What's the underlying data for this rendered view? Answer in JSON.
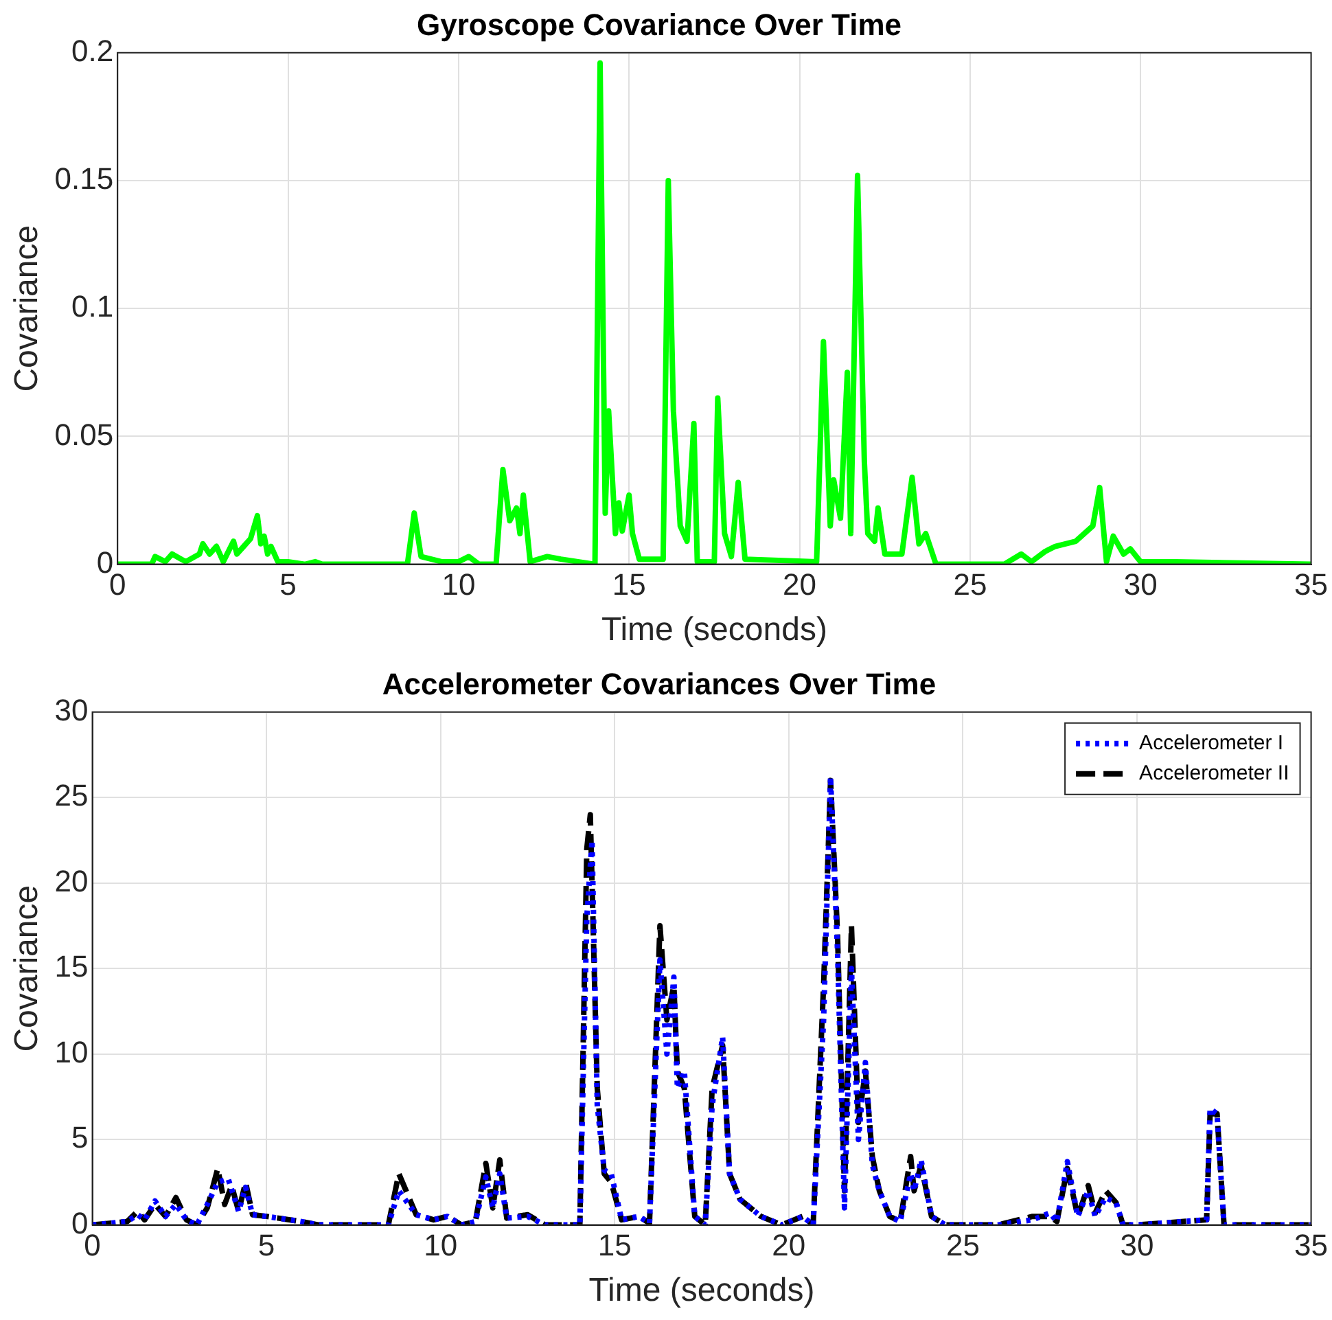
{
  "chart_data": [
    {
      "type": "line",
      "title": "Gyroscope Covariance Over Time",
      "xlabel": "Time (seconds)",
      "ylabel": "Covariance",
      "xlim": [
        0,
        35
      ],
      "xticks": [
        0,
        5,
        10,
        15,
        20,
        25,
        30,
        35
      ],
      "ylim": [
        0,
        0.2
      ],
      "yticks": [
        0,
        0.05,
        0.1,
        0.15,
        0.2
      ],
      "grid": true,
      "legend": false,
      "line_style": "solid",
      "series": [
        {
          "color": "#00ff00",
          "x": [
            0,
            1,
            1.1,
            1.4,
            1.6,
            2,
            2.4,
            2.5,
            2.7,
            2.9,
            3.1,
            3.4,
            3.5,
            3.7,
            3.9,
            4.1,
            4.2,
            4.3,
            4.4,
            4.5,
            4.7,
            5,
            5.5,
            5.8,
            6,
            8.5,
            8.7,
            8.9,
            9.5,
            10,
            10.3,
            10.6,
            11.1,
            11.3,
            11.5,
            11.7,
            11.8,
            11.9,
            12.1,
            12.6,
            13,
            14,
            14.15,
            14.3,
            14.4,
            14.6,
            14.7,
            14.8,
            15,
            15.1,
            15.3,
            16,
            16.15,
            16.3,
            16.5,
            16.7,
            16.9,
            17,
            17.5,
            17.6,
            17.8,
            18,
            18.2,
            18.4,
            20.5,
            20.7,
            20.9,
            21,
            21.2,
            21.4,
            21.5,
            21.7,
            21.9,
            22,
            22.2,
            22.3,
            22.5,
            23,
            23.3,
            23.5,
            23.7,
            24,
            26,
            26.5,
            26.8,
            27.2,
            27.5,
            27.8,
            28.1,
            28.6,
            28.8,
            29,
            29.2,
            29.5,
            29.7,
            30,
            31,
            35
          ],
          "values": [
            0,
            0,
            0.003,
            0.001,
            0.004,
            0.001,
            0.004,
            0.008,
            0.004,
            0.007,
            0.001,
            0.009,
            0.004,
            0.007,
            0.01,
            0.019,
            0.008,
            0.011,
            0.004,
            0.007,
            0.001,
            0.001,
            0,
            0.001,
            0,
            0,
            0.02,
            0.003,
            0.001,
            0.001,
            0.003,
            0,
            0,
            0.037,
            0.017,
            0.022,
            0.012,
            0.027,
            0.001,
            0.003,
            0.002,
            0,
            0.196,
            0.02,
            0.06,
            0.012,
            0.024,
            0.013,
            0.027,
            0.012,
            0.002,
            0.002,
            0.15,
            0.06,
            0.015,
            0.009,
            0.055,
            0.001,
            0.001,
            0.065,
            0.012,
            0.003,
            0.032,
            0.002,
            0.001,
            0.087,
            0.015,
            0.033,
            0.018,
            0.075,
            0.012,
            0.152,
            0.04,
            0.012,
            0.009,
            0.022,
            0.004,
            0.004,
            0.034,
            0.008,
            0.012,
            0,
            0,
            0.004,
            0.001,
            0.005,
            0.007,
            0.008,
            0.009,
            0.015,
            0.03,
            0.001,
            0.011,
            0.004,
            0.006,
            0.001,
            0.001,
            0
          ]
        }
      ]
    },
    {
      "type": "line",
      "title": "Accelerometer Covariances Over Time",
      "xlabel": "Time (seconds)",
      "ylabel": "Covariance",
      "xlim": [
        0,
        35
      ],
      "xticks": [
        0,
        5,
        10,
        15,
        20,
        25,
        30,
        35
      ],
      "ylim": [
        0,
        30
      ],
      "yticks": [
        0,
        5,
        10,
        15,
        20,
        25,
        30
      ],
      "grid": true,
      "legend": "top right",
      "series": [
        {
          "name": "Accelerometer I",
          "color": "#0000ff",
          "line_style": "dotted",
          "x": [
            0,
            1,
            1.3,
            1.5,
            1.8,
            2.1,
            2.4,
            2.7,
            3,
            3.3,
            3.6,
            3.9,
            4.2,
            4.4,
            4.6,
            5,
            6,
            6.5,
            8.5,
            8.8,
            9.3,
            9.8,
            10.2,
            10.6,
            11,
            11.3,
            11.5,
            11.7,
            11.9,
            12.5,
            13,
            14,
            14.2,
            14.35,
            14.5,
            14.7,
            14.9,
            15.2,
            15.7,
            16,
            16.3,
            16.5,
            16.7,
            16.8,
            17,
            17.3,
            17.6,
            17.8,
            18.1,
            18.3,
            18.6,
            19.2,
            19.8,
            20.4,
            20.7,
            21,
            21.2,
            21.4,
            21.6,
            21.8,
            22,
            22.2,
            22.4,
            22.6,
            22.9,
            23.2,
            23.5,
            23.6,
            23.8,
            24.1,
            24.5,
            26,
            27,
            27.5,
            27.7,
            28,
            28.3,
            28.6,
            28.8,
            29.1,
            29.4,
            29.6,
            30,
            32,
            32.1,
            32.3,
            32.5,
            35
          ],
          "values": [
            0,
            0.2,
            0.6,
            0.3,
            1.4,
            0.5,
            1.2,
            0.3,
            0,
            1.2,
            2.5,
            2.7,
            0.8,
            2.2,
            0.6,
            0.5,
            0.2,
            0,
            0,
            2.0,
            0.6,
            0.3,
            0.5,
            0,
            0.2,
            2.8,
            1.0,
            3.0,
            0.4,
            0.5,
            0,
            0,
            18,
            22.5,
            7,
            3.2,
            3,
            0.3,
            0.5,
            0.1,
            15.5,
            10,
            14.5,
            8,
            9,
            0.5,
            0,
            7,
            11,
            3,
            1.5,
            0.5,
            0,
            0.5,
            0,
            12,
            26.2,
            16,
            1,
            15,
            5,
            9.5,
            3.5,
            2,
            0.5,
            0.2,
            3,
            2,
            3.8,
            0.5,
            0,
            0,
            0.3,
            0.7,
            0.2,
            3.7,
            0.5,
            2,
            0.5,
            1.6,
            1.3,
            0,
            0,
            0.3,
            6.8,
            6.5,
            0,
            0
          ]
        },
        {
          "name": "Accelerometer II",
          "color": "#000000",
          "line_style": "dashed",
          "x": [
            0,
            1,
            1.3,
            1.5,
            1.8,
            2.1,
            2.4,
            2.7,
            3,
            3.3,
            3.6,
            3.8,
            4,
            4.2,
            4.4,
            4.6,
            5,
            6,
            6.5,
            8.5,
            8.8,
            9.3,
            9.8,
            10.2,
            10.6,
            11,
            11.3,
            11.5,
            11.7,
            11.9,
            12.5,
            13,
            14,
            14.2,
            14.3,
            14.5,
            14.7,
            14.9,
            15.2,
            15.7,
            16,
            16.3,
            16.5,
            16.7,
            16.8,
            17,
            17.3,
            17.6,
            17.8,
            18.1,
            18.3,
            18.6,
            19.2,
            19.8,
            20.4,
            20.7,
            21,
            21.2,
            21.4,
            21.6,
            21.8,
            22,
            22.2,
            22.4,
            22.6,
            22.9,
            23.2,
            23.5,
            23.6,
            23.8,
            24.1,
            24.5,
            26,
            27,
            27.5,
            27.7,
            28,
            28.3,
            28.6,
            28.8,
            29.1,
            29.4,
            29.6,
            30,
            32,
            32.1,
            32.3,
            32.5,
            35
          ],
          "values": [
            0,
            0.2,
            0.8,
            0.3,
            1.2,
            0.5,
            1.6,
            0.3,
            0,
            1.0,
            3.3,
            1.2,
            2.3,
            0.8,
            2.5,
            0.6,
            0.5,
            0.2,
            0,
            0,
            3.0,
            0.6,
            0.3,
            0.5,
            0,
            0.2,
            3.6,
            1.0,
            3.8,
            0.4,
            0.6,
            0,
            0,
            22,
            24,
            8,
            3,
            2.5,
            0.3,
            0.5,
            0.1,
            17.5,
            12,
            14,
            9,
            8,
            0.5,
            0,
            8,
            10.5,
            3,
            1.5,
            0.5,
            0,
            0.5,
            0,
            14,
            26,
            17,
            2,
            17.5,
            6,
            9,
            4,
            2,
            0.5,
            0.2,
            4,
            2,
            3.5,
            0.5,
            0,
            0,
            0.5,
            0.5,
            0.2,
            3.3,
            0.5,
            2.3,
            0.7,
            2,
            1.3,
            0,
            0,
            0.3,
            6.5,
            6.5,
            0,
            0
          ]
        }
      ]
    }
  ]
}
